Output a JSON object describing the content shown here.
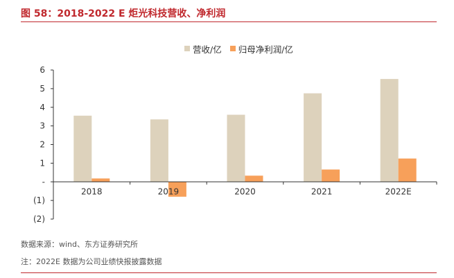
{
  "title": "图 58：2018-2022 E 炬光科技营收、净利润",
  "source": "数据来源：wind、东方证券研究所",
  "note": "注：2022E 数据为公司业绩快报披露数据",
  "colors": {
    "revenue": "#ddd2bc",
    "net_profit": "#f7a05a",
    "accent": "#c0282d"
  },
  "chart_data": {
    "type": "bar",
    "categories": [
      "2018",
      "2019",
      "2020",
      "2021",
      "2022E"
    ],
    "series": [
      {
        "name": "营收/亿",
        "values": [
          3.55,
          3.35,
          3.6,
          4.75,
          5.52
        ]
      },
      {
        "name": "归母净利润/亿",
        "values": [
          0.18,
          -0.8,
          0.33,
          0.66,
          1.25
        ]
      }
    ],
    "ylim": [
      -2,
      6
    ],
    "yticks": [
      6,
      5,
      4,
      3,
      2,
      1,
      0,
      -1,
      -2
    ],
    "ytick_labels": [
      "6",
      "5",
      "4",
      "3",
      "2",
      "1",
      "-",
      "(1)",
      "(2)"
    ],
    "legend_position": "top-center"
  }
}
